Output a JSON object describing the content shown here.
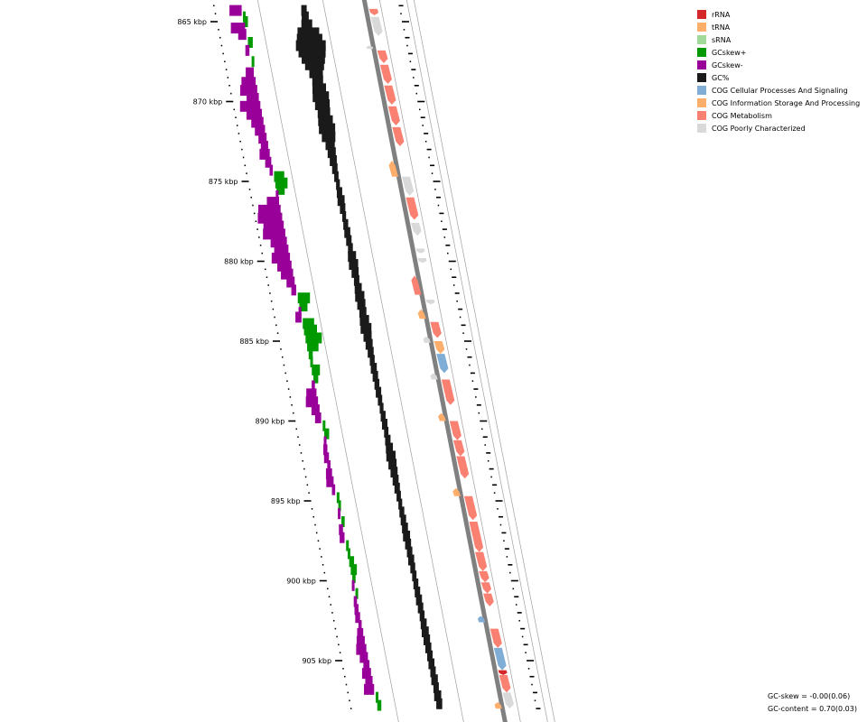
{
  "legend": [
    {
      "label": "rRNA",
      "color": "#d62728"
    },
    {
      "label": "tRNA",
      "color": "#fdae6b"
    },
    {
      "label": "sRNA",
      "color": "#a1d99b"
    },
    {
      "label": "GCskew+",
      "color": "#009900"
    },
    {
      "label": "GCskew-",
      "color": "#990099"
    },
    {
      "label": "GC%",
      "color": "#1a1a1a"
    },
    {
      "label": "COG Cellular Processes And Signaling",
      "color": "#7fadd6"
    },
    {
      "label": "COG Information Storage And Processing",
      "color": "#fdae6b"
    },
    {
      "label": "COG Metabolism",
      "color": "#fa8072"
    },
    {
      "label": "COG Poorly Characterized",
      "color": "#d9d9d9"
    }
  ],
  "axis": {
    "start_kbp": 864,
    "end_kbp": 908,
    "labels": [
      "865 kbp",
      "870 kbp",
      "875 kbp",
      "880 kbp",
      "885 kbp",
      "890 kbp",
      "895 kbp",
      "900 kbp",
      "905 kbp"
    ],
    "label_positions_kbp": [
      865,
      870,
      875,
      880,
      885,
      890,
      895,
      900,
      905
    ]
  },
  "stats": {
    "gc_skew": "GC-skew = -0.00(0.06)",
    "gc_content": "GC-content = 0.70(0.03)"
  },
  "colors": {
    "backbone": "#808080",
    "track_line": "#a0a0a0",
    "tick": "#000000"
  },
  "features": [
    {
      "start": 864.2,
      "end": 864.6,
      "strand": "+",
      "cat": "metabolism"
    },
    {
      "start": 864.7,
      "end": 865.9,
      "strand": "+",
      "cat": "poorly"
    },
    {
      "start": 866.5,
      "end": 866.7,
      "strand": "-",
      "cat": "poorly"
    },
    {
      "start": 866.8,
      "end": 867.6,
      "strand": "+",
      "cat": "metabolism"
    },
    {
      "start": 867.7,
      "end": 868.9,
      "strand": "+",
      "cat": "metabolism"
    },
    {
      "start": 869.0,
      "end": 870.2,
      "strand": "+",
      "cat": "metabolism"
    },
    {
      "start": 870.3,
      "end": 871.5,
      "strand": "+",
      "cat": "metabolism"
    },
    {
      "start": 871.6,
      "end": 872.8,
      "strand": "+",
      "cat": "metabolism"
    },
    {
      "start": 873.7,
      "end": 874.7,
      "strand": "-",
      "cat": "info"
    },
    {
      "start": 874.7,
      "end": 875.9,
      "strand": "+",
      "cat": "poorly"
    },
    {
      "start": 876.0,
      "end": 877.4,
      "strand": "+",
      "cat": "metabolism"
    },
    {
      "start": 877.6,
      "end": 878.4,
      "strand": "+",
      "cat": "poorly"
    },
    {
      "start": 879.2,
      "end": 879.5,
      "strand": "+",
      "cat": "poorly"
    },
    {
      "start": 879.8,
      "end": 880.1,
      "strand": "+",
      "cat": "poorly"
    },
    {
      "start": 880.9,
      "end": 882.1,
      "strand": "-",
      "cat": "metabolism"
    },
    {
      "start": 882.4,
      "end": 882.7,
      "strand": "+",
      "cat": "poorly"
    },
    {
      "start": 883.0,
      "end": 883.6,
      "strand": "-",
      "cat": "info"
    },
    {
      "start": 883.8,
      "end": 884.8,
      "strand": "+",
      "cat": "metabolism"
    },
    {
      "start": 884.7,
      "end": 885.1,
      "strand": "-",
      "cat": "poorly"
    },
    {
      "start": 885.0,
      "end": 885.8,
      "strand": "+",
      "cat": "info"
    },
    {
      "start": 885.8,
      "end": 887.0,
      "strand": "+",
      "cat": "cellular"
    },
    {
      "start": 887.0,
      "end": 887.4,
      "strand": "-",
      "cat": "poorly"
    },
    {
      "start": 887.4,
      "end": 889.0,
      "strand": "+",
      "cat": "metabolism"
    },
    {
      "start": 889.5,
      "end": 890.0,
      "strand": "-",
      "cat": "info"
    },
    {
      "start": 890.0,
      "end": 891.2,
      "strand": "+",
      "cat": "metabolism"
    },
    {
      "start": 891.2,
      "end": 892.2,
      "strand": "+",
      "cat": "metabolism"
    },
    {
      "start": 892.2,
      "end": 893.6,
      "strand": "+",
      "cat": "metabolism"
    },
    {
      "start": 894.2,
      "end": 894.7,
      "strand": "-",
      "cat": "info"
    },
    {
      "start": 894.7,
      "end": 896.2,
      "strand": "+",
      "cat": "metabolism"
    },
    {
      "start": 896.3,
      "end": 898.2,
      "strand": "+",
      "cat": "metabolism"
    },
    {
      "start": 898.2,
      "end": 899.4,
      "strand": "+",
      "cat": "metabolism"
    },
    {
      "start": 899.4,
      "end": 900.1,
      "strand": "+",
      "cat": "metabolism"
    },
    {
      "start": 900.1,
      "end": 900.8,
      "strand": "+",
      "cat": "metabolism"
    },
    {
      "start": 900.8,
      "end": 901.6,
      "strand": "+",
      "cat": "metabolism"
    },
    {
      "start": 902.2,
      "end": 902.6,
      "strand": "-",
      "cat": "cellular"
    },
    {
      "start": 903.0,
      "end": 904.2,
      "strand": "+",
      "cat": "metabolism"
    },
    {
      "start": 904.2,
      "end": 905.6,
      "strand": "+",
      "cat": "cellular"
    },
    {
      "start": 905.6,
      "end": 905.9,
      "strand": "+",
      "cat": "rrna"
    },
    {
      "start": 905.9,
      "end": 907.0,
      "strand": "+",
      "cat": "metabolism"
    },
    {
      "start": 907.0,
      "end": 908.0,
      "strand": "+",
      "cat": "poorly"
    },
    {
      "start": 907.6,
      "end": 908.0,
      "strand": "-",
      "cat": "info"
    }
  ],
  "gc_skew_windows": [
    {
      "pos": 864.3,
      "v": -0.3
    },
    {
      "pos": 864.7,
      "v": 0.05
    },
    {
      "pos": 865.0,
      "v": 0.1
    },
    {
      "pos": 865.4,
      "v": -0.35
    },
    {
      "pos": 865.8,
      "v": -0.2
    },
    {
      "pos": 866.3,
      "v": 0.12
    },
    {
      "pos": 866.8,
      "v": -0.1
    },
    {
      "pos": 867.5,
      "v": 0.04
    },
    {
      "pos": 868.2,
      "v": -0.2
    },
    {
      "pos": 868.8,
      "v": -0.35
    },
    {
      "pos": 869.3,
      "v": -0.42
    },
    {
      "pos": 869.8,
      "v": -0.3
    },
    {
      "pos": 870.3,
      "v": -0.5
    },
    {
      "pos": 870.8,
      "v": -0.38
    },
    {
      "pos": 871.3,
      "v": -0.3
    },
    {
      "pos": 871.8,
      "v": -0.25
    },
    {
      "pos": 872.3,
      "v": -0.2
    },
    {
      "pos": 872.8,
      "v": -0.18
    },
    {
      "pos": 873.3,
      "v": -0.25
    },
    {
      "pos": 873.8,
      "v": -0.15
    },
    {
      "pos": 874.3,
      "v": -0.08
    },
    {
      "pos": 874.7,
      "v": 0.25
    },
    {
      "pos": 875.1,
      "v": 0.3
    },
    {
      "pos": 875.5,
      "v": 0.2
    },
    {
      "pos": 875.9,
      "v": -0.05
    },
    {
      "pos": 876.3,
      "v": -0.3
    },
    {
      "pos": 876.8,
      "v": -0.55
    },
    {
      "pos": 877.3,
      "v": -0.6
    },
    {
      "pos": 877.8,
      "v": -0.5
    },
    {
      "pos": 878.3,
      "v": -0.55
    },
    {
      "pos": 878.8,
      "v": -0.4
    },
    {
      "pos": 879.3,
      "v": -0.35
    },
    {
      "pos": 879.8,
      "v": -0.45
    },
    {
      "pos": 880.3,
      "v": -0.35
    },
    {
      "pos": 880.8,
      "v": -0.3
    },
    {
      "pos": 881.3,
      "v": -0.2
    },
    {
      "pos": 881.8,
      "v": -0.12
    },
    {
      "pos": 882.3,
      "v": 0.3
    },
    {
      "pos": 882.8,
      "v": 0.2
    },
    {
      "pos": 883.2,
      "v": -0.05
    },
    {
      "pos": 883.5,
      "v": -0.15
    },
    {
      "pos": 883.9,
      "v": 0.28
    },
    {
      "pos": 884.3,
      "v": 0.32
    },
    {
      "pos": 884.8,
      "v": 0.4
    },
    {
      "pos": 885.3,
      "v": 0.28
    },
    {
      "pos": 885.8,
      "v": 0.1
    },
    {
      "pos": 886.3,
      "v": 0.05
    },
    {
      "pos": 886.8,
      "v": 0.2
    },
    {
      "pos": 887.3,
      "v": 0.12
    },
    {
      "pos": 887.8,
      "v": -0.08
    },
    {
      "pos": 888.3,
      "v": -0.25
    },
    {
      "pos": 888.8,
      "v": -0.3
    },
    {
      "pos": 889.3,
      "v": -0.2
    },
    {
      "pos": 889.8,
      "v": -0.15
    },
    {
      "pos": 890.3,
      "v": 0.06
    },
    {
      "pos": 890.8,
      "v": 0.12
    },
    {
      "pos": 891.3,
      "v": -0.05
    },
    {
      "pos": 891.8,
      "v": -0.1
    },
    {
      "pos": 892.3,
      "v": -0.12
    },
    {
      "pos": 892.8,
      "v": -0.08
    },
    {
      "pos": 893.3,
      "v": -0.15
    },
    {
      "pos": 893.8,
      "v": -0.18
    },
    {
      "pos": 894.3,
      "v": -0.08
    },
    {
      "pos": 894.8,
      "v": 0.05
    },
    {
      "pos": 895.3,
      "v": 0.06
    },
    {
      "pos": 895.8,
      "v": -0.05
    },
    {
      "pos": 896.3,
      "v": 0.08
    },
    {
      "pos": 896.8,
      "v": -0.1
    },
    {
      "pos": 897.3,
      "v": -0.12
    },
    {
      "pos": 897.8,
      "v": 0.05
    },
    {
      "pos": 898.3,
      "v": 0.06
    },
    {
      "pos": 898.8,
      "v": 0.12
    },
    {
      "pos": 899.3,
      "v": 0.15
    },
    {
      "pos": 899.8,
      "v": 0.08
    },
    {
      "pos": 900.3,
      "v": -0.05
    },
    {
      "pos": 900.8,
      "v": 0.06
    },
    {
      "pos": 901.3,
      "v": -0.08
    },
    {
      "pos": 901.8,
      "v": -0.1
    },
    {
      "pos": 902.3,
      "v": -0.12
    },
    {
      "pos": 902.8,
      "v": -0.08
    },
    {
      "pos": 903.3,
      "v": -0.15
    },
    {
      "pos": 903.8,
      "v": -0.2
    },
    {
      "pos": 904.3,
      "v": -0.25
    },
    {
      "pos": 904.8,
      "v": -0.2
    },
    {
      "pos": 905.3,
      "v": -0.15
    },
    {
      "pos": 905.8,
      "v": -0.22
    },
    {
      "pos": 906.3,
      "v": -0.18
    },
    {
      "pos": 906.8,
      "v": -0.25
    },
    {
      "pos": 907.3,
      "v": 0.05
    },
    {
      "pos": 907.8,
      "v": 0.1
    }
  ],
  "gc_content_windows": [
    {
      "pos": 864.3,
      "v": 0.05
    },
    {
      "pos": 864.7,
      "v": 0.08
    },
    {
      "pos": 865.2,
      "v": 0.15
    },
    {
      "pos": 865.7,
      "v": 0.35
    },
    {
      "pos": 866.1,
      "v": 0.42
    },
    {
      "pos": 866.5,
      "v": 0.5
    },
    {
      "pos": 866.9,
      "v": 0.45
    },
    {
      "pos": 867.3,
      "v": 0.38
    },
    {
      "pos": 867.7,
      "v": 0.3
    },
    {
      "pos": 868.2,
      "v": 0.2
    },
    {
      "pos": 868.7,
      "v": 0.15
    },
    {
      "pos": 869.2,
      "v": 0.2
    },
    {
      "pos": 869.7,
      "v": 0.25
    },
    {
      "pos": 870.2,
      "v": 0.22
    },
    {
      "pos": 870.7,
      "v": 0.18
    },
    {
      "pos": 871.2,
      "v": 0.22
    },
    {
      "pos": 871.7,
      "v": 0.25
    },
    {
      "pos": 872.2,
      "v": 0.2
    },
    {
      "pos": 872.7,
      "v": 0.12
    },
    {
      "pos": 873.2,
      "v": 0.1
    },
    {
      "pos": 873.7,
      "v": 0.08
    },
    {
      "pos": 874.2,
      "v": 0.05
    },
    {
      "pos": 874.7,
      "v": 0.03
    },
    {
      "pos": 875.2,
      "v": 0.02
    },
    {
      "pos": 875.7,
      "v": 0.05
    },
    {
      "pos": 876.2,
      "v": 0.08
    },
    {
      "pos": 876.7,
      "v": 0.05
    },
    {
      "pos": 877.2,
      "v": 0.02
    },
    {
      "pos": 877.7,
      "v": 0.04
    },
    {
      "pos": 878.2,
      "v": 0.06
    },
    {
      "pos": 878.7,
      "v": 0.05
    },
    {
      "pos": 879.2,
      "v": 0.04
    },
    {
      "pos": 879.7,
      "v": 0.1
    },
    {
      "pos": 880.2,
      "v": 0.12
    },
    {
      "pos": 880.7,
      "v": 0.08
    },
    {
      "pos": 881.2,
      "v": 0.05
    },
    {
      "pos": 881.7,
      "v": 0.08
    },
    {
      "pos": 882.2,
      "v": 0.12
    },
    {
      "pos": 882.7,
      "v": 0.1
    },
    {
      "pos": 883.2,
      "v": 0.08
    },
    {
      "pos": 883.7,
      "v": 0.12
    },
    {
      "pos": 884.2,
      "v": 0.15
    },
    {
      "pos": 884.7,
      "v": 0.1
    },
    {
      "pos": 885.2,
      "v": 0.08
    },
    {
      "pos": 885.7,
      "v": 0.06
    },
    {
      "pos": 886.2,
      "v": 0.04
    },
    {
      "pos": 886.7,
      "v": 0.06
    },
    {
      "pos": 887.2,
      "v": 0.05
    },
    {
      "pos": 887.7,
      "v": 0.04
    },
    {
      "pos": 888.2,
      "v": 0.05
    },
    {
      "pos": 888.7,
      "v": 0.03
    },
    {
      "pos": 889.2,
      "v": 0.02
    },
    {
      "pos": 889.7,
      "v": 0.04
    },
    {
      "pos": 890.2,
      "v": 0.05
    },
    {
      "pos": 890.7,
      "v": 0.03
    },
    {
      "pos": 891.2,
      "v": 0.05
    },
    {
      "pos": 891.7,
      "v": 0.08
    },
    {
      "pos": 892.2,
      "v": 0.12
    },
    {
      "pos": 892.7,
      "v": 0.1
    },
    {
      "pos": 893.2,
      "v": 0.08
    },
    {
      "pos": 893.7,
      "v": 0.06
    },
    {
      "pos": 894.2,
      "v": 0.05
    },
    {
      "pos": 894.7,
      "v": 0.03
    },
    {
      "pos": 895.2,
      "v": 0.02
    },
    {
      "pos": 895.7,
      "v": 0.04
    },
    {
      "pos": 896.2,
      "v": 0.05
    },
    {
      "pos": 896.7,
      "v": 0.06
    },
    {
      "pos": 897.2,
      "v": 0.08
    },
    {
      "pos": 897.7,
      "v": 0.06
    },
    {
      "pos": 898.2,
      "v": 0.05
    },
    {
      "pos": 898.7,
      "v": 0.06
    },
    {
      "pos": 899.2,
      "v": 0.04
    },
    {
      "pos": 899.7,
      "v": 0.03
    },
    {
      "pos": 900.2,
      "v": 0.04
    },
    {
      "pos": 900.7,
      "v": 0.05
    },
    {
      "pos": 901.2,
      "v": 0.06
    },
    {
      "pos": 901.7,
      "v": 0.05
    },
    {
      "pos": 902.2,
      "v": 0.04
    },
    {
      "pos": 902.7,
      "v": 0.06
    },
    {
      "pos": 903.2,
      "v": 0.08
    },
    {
      "pos": 903.7,
      "v": 0.07
    },
    {
      "pos": 904.2,
      "v": 0.06
    },
    {
      "pos": 904.7,
      "v": 0.05
    },
    {
      "pos": 905.2,
      "v": 0.06
    },
    {
      "pos": 905.7,
      "v": 0.05
    },
    {
      "pos": 906.2,
      "v": 0.07
    },
    {
      "pos": 906.7,
      "v": 0.05
    },
    {
      "pos": 907.2,
      "v": 0.08
    },
    {
      "pos": 907.7,
      "v": 0.06
    }
  ]
}
